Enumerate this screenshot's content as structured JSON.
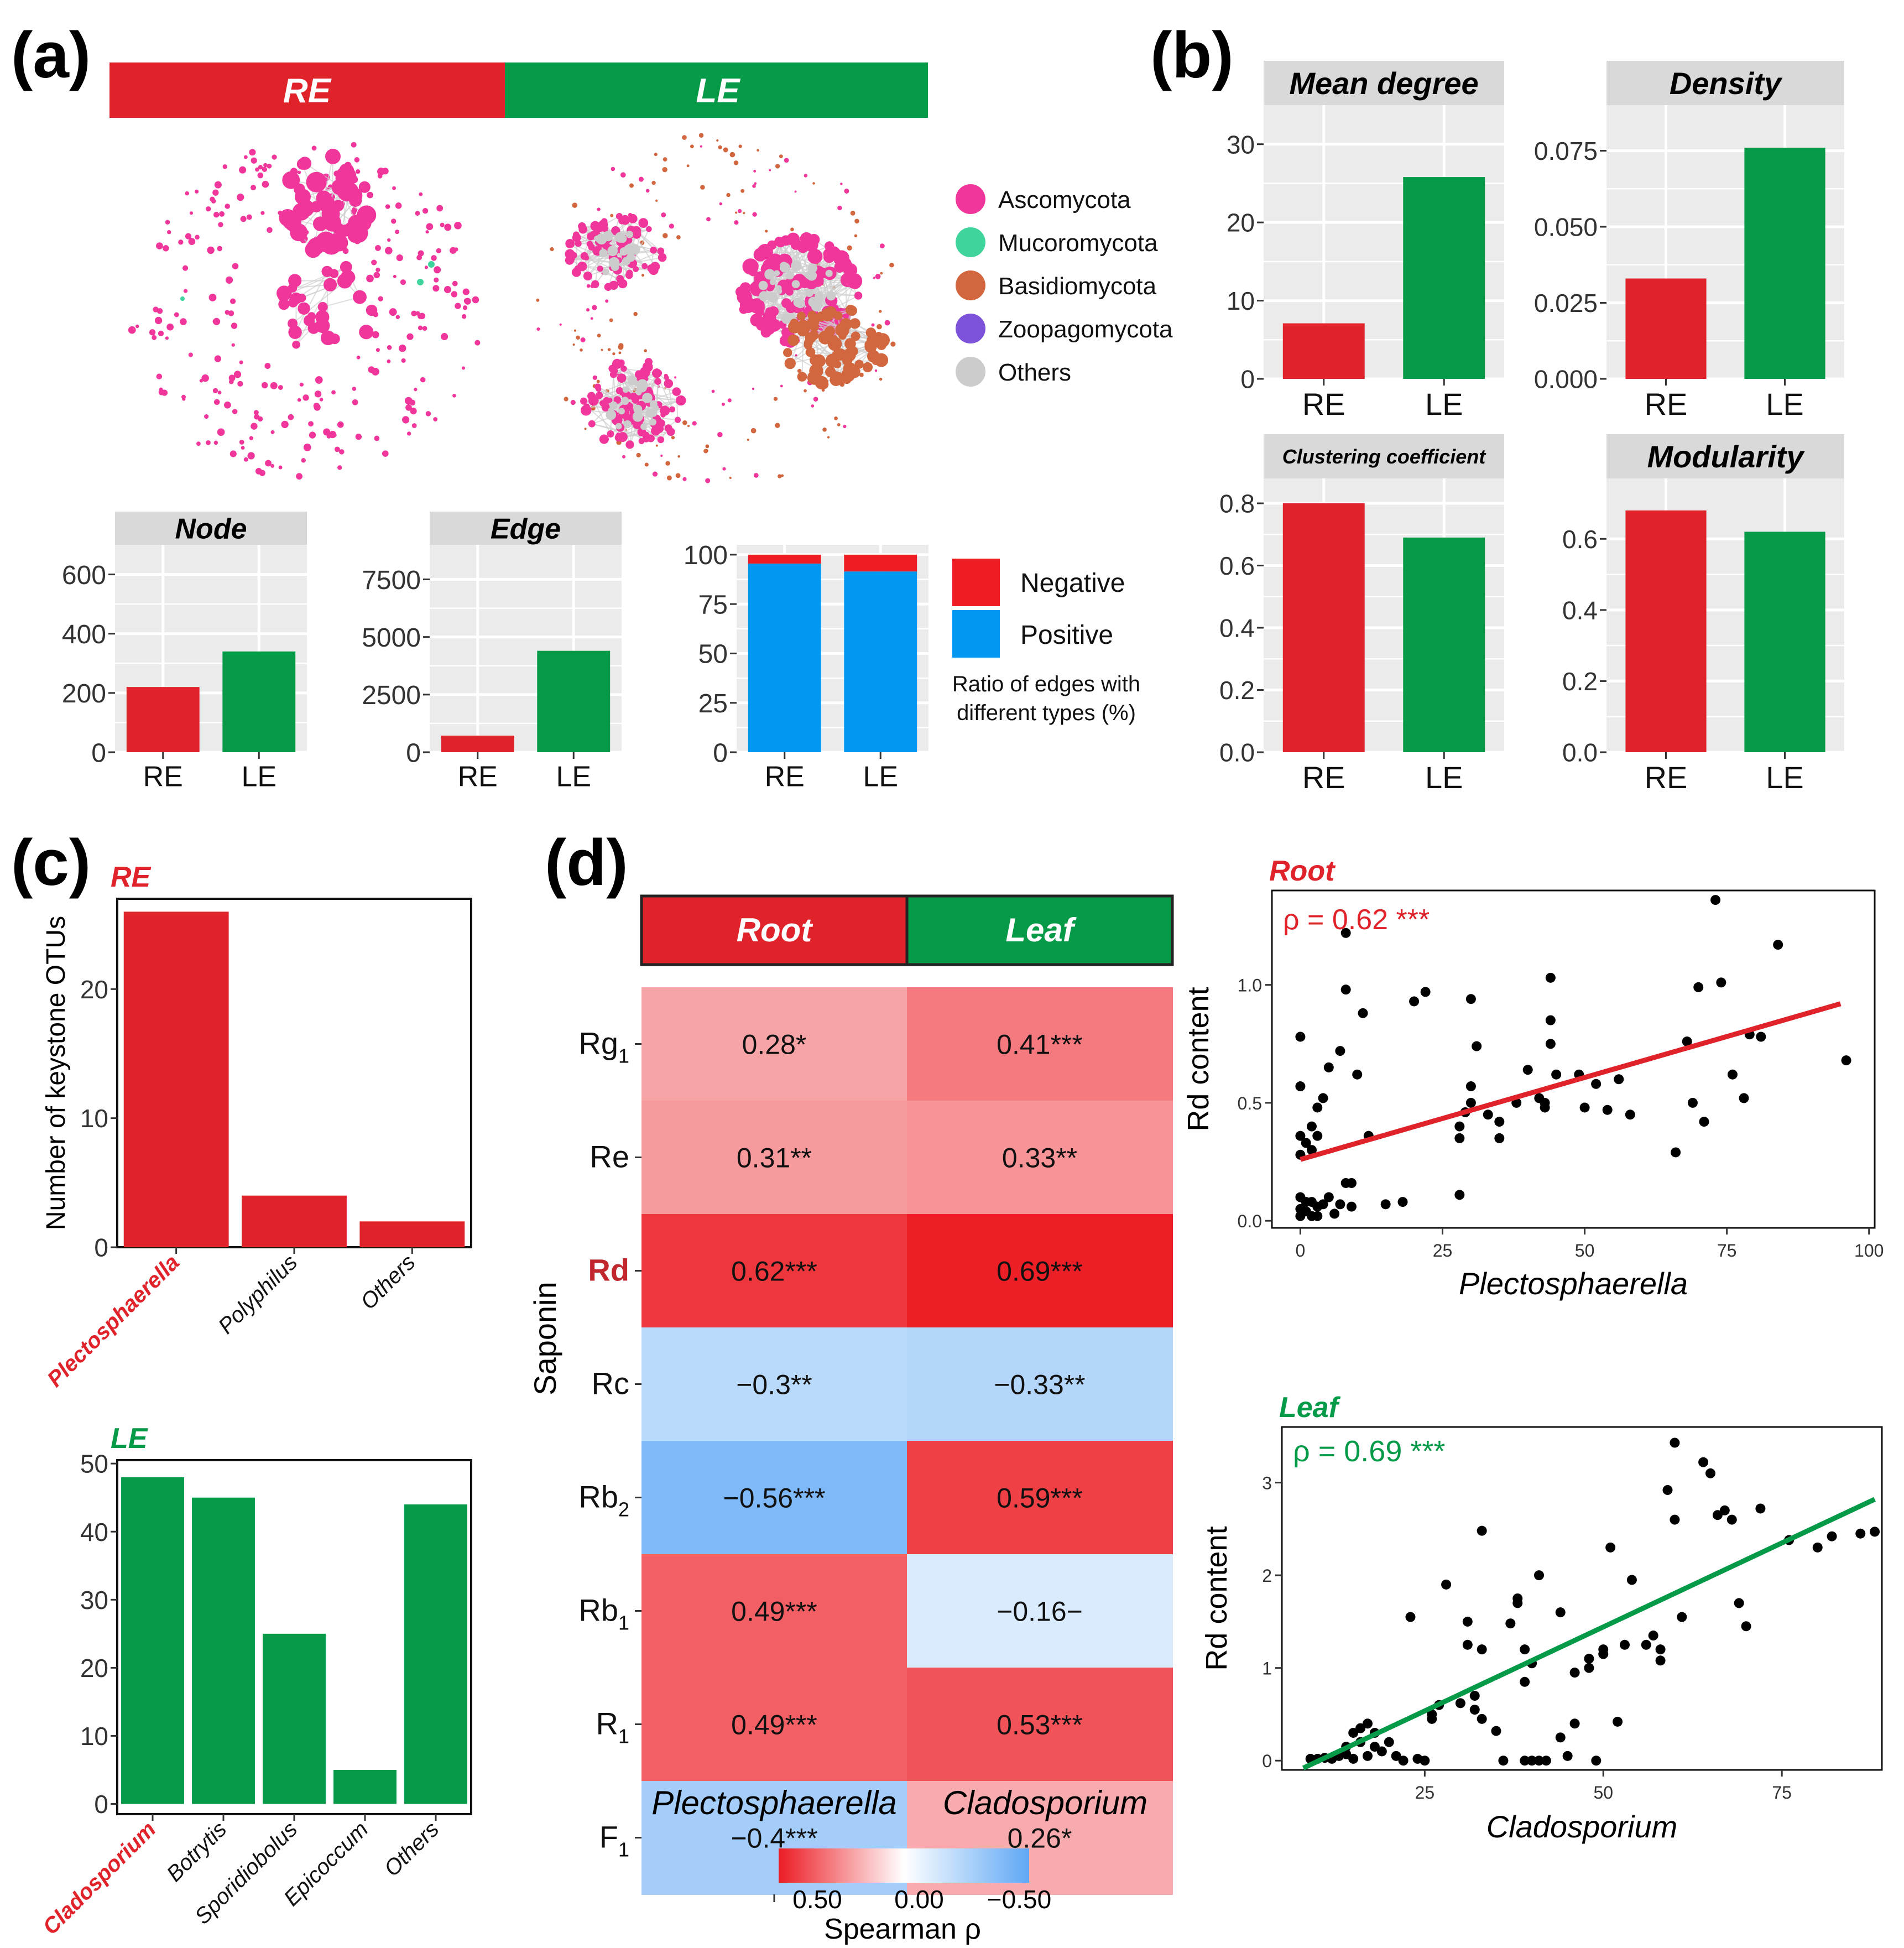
{
  "colors": {
    "red": "#e0232a",
    "green": "#049a48",
    "panel": "#ebebeb",
    "strip": "#d9d9d9",
    "pink": "#f0369b",
    "neg": "#ee1d23",
    "pos": "#0098f0",
    "axis": "#333333",
    "heat_hi": "#ec1c24",
    "heat_lo": "#5fa8f5"
  },
  "labels": {
    "a": "(a)",
    "b": "(b)",
    "c": "(c)",
    "d": "(d)"
  },
  "network": {
    "groups": [
      "RE",
      "LE"
    ],
    "legend": [
      {
        "name": "Ascomycota",
        "color": "#f0369b"
      },
      {
        "name": "Mucoromycota",
        "color": "#3fd49c"
      },
      {
        "name": "Basidiomycota",
        "color": "#d2663e"
      },
      {
        "name": "Zoopagomycota",
        "color": "#7b52d8"
      },
      {
        "name": "Others",
        "color": "#cccccc"
      }
    ]
  },
  "chart_data": [
    {
      "id": "node",
      "type": "bar",
      "title": "Node",
      "categories": [
        "RE",
        "LE"
      ],
      "values": [
        220,
        340
      ],
      "ylim": [
        0,
        700
      ],
      "yticks": [
        0,
        200,
        400,
        600
      ]
    },
    {
      "id": "edge",
      "type": "bar",
      "title": "Edge",
      "categories": [
        "RE",
        "LE"
      ],
      "values": [
        720,
        4400
      ],
      "ylim": [
        0,
        9000
      ],
      "yticks": [
        0,
        2500,
        5000,
        7500
      ]
    },
    {
      "id": "ratio",
      "type": "bar",
      "stacked": true,
      "title": "",
      "categories": [
        "RE",
        "LE"
      ],
      "series": [
        {
          "name": "Positive",
          "values": [
            95.5,
            91.5
          ]
        },
        {
          "name": "Negative",
          "values": [
            4.5,
            8.5
          ]
        }
      ],
      "ylim": [
        0,
        105
      ],
      "yticks": [
        0,
        25,
        50,
        75,
        100
      ],
      "legend": [
        "Negative",
        "Positive"
      ],
      "note": "Ratio of edges with different types (%)"
    },
    {
      "id": "meandegree",
      "type": "bar",
      "title": "Mean degree",
      "categories": [
        "RE",
        "LE"
      ],
      "values": [
        7.1,
        25.8
      ],
      "ylim": [
        0,
        35
      ],
      "yticks": [
        0,
        10,
        20,
        30
      ]
    },
    {
      "id": "density",
      "type": "bar",
      "title": "Density",
      "categories": [
        "RE",
        "LE"
      ],
      "values": [
        0.033,
        0.076
      ],
      "ylim": [
        0,
        0.09
      ],
      "yticks": [
        "0.000",
        "0.025",
        "0.050",
        "0.075"
      ]
    },
    {
      "id": "clustering",
      "type": "bar",
      "title": "Clustering coefficient",
      "categories": [
        "RE",
        "LE"
      ],
      "values": [
        0.8,
        0.69
      ],
      "ylim": [
        0,
        0.88
      ],
      "yticks": [
        "0.0",
        "0.2",
        "0.4",
        "0.6",
        "0.8"
      ]
    },
    {
      "id": "modularity",
      "type": "bar",
      "title": "Modularity",
      "categories": [
        "RE",
        "LE"
      ],
      "values": [
        0.68,
        0.62
      ],
      "ylim": [
        0,
        0.77
      ],
      "yticks": [
        "0.0",
        "0.2",
        "0.4",
        "0.6"
      ]
    },
    {
      "id": "keyre",
      "type": "bar",
      "title": "RE",
      "ylabel": "Number of keystone OTUs",
      "categories": [
        "Plectosphaerella",
        "Polyphilus",
        "Others"
      ],
      "values": [
        26,
        4,
        2
      ],
      "ylim": [
        0,
        27
      ],
      "yticks": [
        0,
        10,
        20
      ]
    },
    {
      "id": "keyle",
      "type": "bar",
      "title": "LE",
      "categories": [
        "Cladosporium",
        "Botrytis",
        "Sporidiobolus",
        "Epicoccum",
        "Others"
      ],
      "values": [
        48,
        45,
        25,
        5,
        44
      ],
      "ylim": [
        -1.5,
        50.5
      ],
      "yticks": [
        0,
        10,
        20,
        30,
        40,
        50
      ]
    },
    {
      "id": "heatmap",
      "type": "heatmap",
      "columns": [
        "Root",
        "Leaf"
      ],
      "xlabels": [
        "Plectosphaerella",
        "Cladosporium"
      ],
      "ylabel": "Saponin",
      "rows": [
        {
          "base": "Rg",
          "sub": "1",
          "values": [
            0.28,
            0.41
          ],
          "labels": [
            "0.28*",
            "0.41***"
          ]
        },
        {
          "base": "Re",
          "sub": "",
          "values": [
            0.31,
            0.33
          ],
          "labels": [
            "0.31**",
            "0.33**"
          ]
        },
        {
          "base": "Rd",
          "sub": "",
          "values": [
            0.62,
            0.69
          ],
          "labels": [
            "0.62***",
            "0.69***"
          ]
        },
        {
          "base": "Rc",
          "sub": "",
          "values": [
            -0.3,
            -0.33
          ],
          "labels": [
            "−0.3**",
            "−0.33**"
          ]
        },
        {
          "base": "Rb",
          "sub": "2",
          "values": [
            -0.56,
            0.59
          ],
          "labels": [
            "−0.56***",
            "0.59***"
          ]
        },
        {
          "base": "Rb",
          "sub": "1",
          "values": [
            0.49,
            -0.16
          ],
          "labels": [
            "0.49***",
            "−0.16−"
          ]
        },
        {
          "base": "R",
          "sub": "1",
          "values": [
            0.49,
            0.53
          ],
          "labels": [
            "0.49***",
            "0.53***"
          ]
        },
        {
          "base": "F",
          "sub": "1",
          "values": [
            -0.4,
            0.26
          ],
          "labels": [
            "−0.4***",
            "0.26*"
          ]
        }
      ],
      "colorbar": {
        "title": "Spearman ρ",
        "ticks": [
          "0.50",
          "0.00",
          "−0.50"
        ]
      }
    },
    {
      "id": "scatterroot",
      "type": "scatter",
      "title": "Root",
      "annotation": "ρ = 0.62 ***",
      "xlabel": "Plectosphaerella",
      "ylabel": "Rd content",
      "xlim": [
        -5,
        101
      ],
      "ylim": [
        -0.03,
        1.4
      ],
      "xticks": [
        0,
        25,
        50,
        75,
        100
      ],
      "yticks": [
        "0.0",
        "0.5",
        "1.0"
      ],
      "fit": [
        [
          0,
          0.26
        ],
        [
          95,
          0.92
        ]
      ],
      "points": [
        [
          0,
          0.78
        ],
        [
          0,
          0.57
        ],
        [
          0,
          0.36
        ],
        [
          0,
          0.28
        ],
        [
          0,
          0.1
        ],
        [
          0,
          0.05
        ],
        [
          0,
          0.02
        ],
        [
          1,
          0.33
        ],
        [
          1,
          0.08
        ],
        [
          1,
          0.04
        ],
        [
          2,
          0.4
        ],
        [
          2,
          0.3
        ],
        [
          2,
          0.08
        ],
        [
          2,
          0.02
        ],
        [
          3,
          0.48
        ],
        [
          3,
          0.36
        ],
        [
          3,
          0.06
        ],
        [
          3,
          0.02
        ],
        [
          4,
          0.52
        ],
        [
          4,
          0.07
        ],
        [
          5,
          0.65
        ],
        [
          5,
          0.1
        ],
        [
          6,
          0.03
        ],
        [
          7,
          0.72
        ],
        [
          7,
          0.07
        ],
        [
          8,
          0.98
        ],
        [
          8,
          0.16
        ],
        [
          8,
          1.22
        ],
        [
          9,
          0.16
        ],
        [
          9,
          0.06
        ],
        [
          10,
          0.62
        ],
        [
          11,
          0.88
        ],
        [
          12,
          0.36
        ],
        [
          15,
          0.07
        ],
        [
          18,
          0.08
        ],
        [
          20,
          0.93
        ],
        [
          22,
          0.97
        ],
        [
          28,
          0.11
        ],
        [
          28,
          0.4
        ],
        [
          28,
          0.35
        ],
        [
          29,
          0.46
        ],
        [
          30,
          0.94
        ],
        [
          30,
          0.57
        ],
        [
          30,
          0.5
        ],
        [
          31,
          0.74
        ],
        [
          33,
          0.45
        ],
        [
          35,
          0.42
        ],
        [
          35,
          0.35
        ],
        [
          38,
          0.5
        ],
        [
          40,
          0.64
        ],
        [
          42,
          0.52
        ],
        [
          43,
          0.5
        ],
        [
          43,
          0.48
        ],
        [
          44,
          1.03
        ],
        [
          44,
          0.85
        ],
        [
          44,
          0.75
        ],
        [
          45,
          0.62
        ],
        [
          49,
          0.62
        ],
        [
          50,
          0.48
        ],
        [
          52,
          0.58
        ],
        [
          54,
          0.47
        ],
        [
          56,
          0.6
        ],
        [
          58,
          0.45
        ],
        [
          66,
          0.29
        ],
        [
          68,
          0.76
        ],
        [
          69,
          0.5
        ],
        [
          70,
          0.99
        ],
        [
          71,
          0.42
        ],
        [
          73,
          1.36
        ],
        [
          74,
          1.01
        ],
        [
          76,
          0.62
        ],
        [
          78,
          0.52
        ],
        [
          79,
          0.79
        ],
        [
          81,
          0.78
        ],
        [
          84,
          1.17
        ],
        [
          96,
          0.68
        ]
      ]
    },
    {
      "id": "scatterleaf",
      "type": "scatter",
      "title": "Leaf",
      "annotation": "ρ = 0.69 ***",
      "xlabel": "Cladosporium",
      "ylabel": "Rd content",
      "xlim": [
        5,
        89
      ],
      "ylim": [
        -0.1,
        3.6
      ],
      "xticks": [
        25,
        50,
        75
      ],
      "yticks": [
        0,
        1,
        2,
        3
      ],
      "fit": [
        [
          8,
          -0.08
        ],
        [
          88,
          2.82
        ]
      ],
      "points": [
        [
          9,
          0.02
        ],
        [
          10,
          0.02
        ],
        [
          11,
          0.03
        ],
        [
          12,
          0.02
        ],
        [
          13,
          0.05
        ],
        [
          14,
          0.07
        ],
        [
          14,
          0.15
        ],
        [
          15,
          0.3
        ],
        [
          15,
          0.02
        ],
        [
          16,
          0.2
        ],
        [
          16,
          0.35
        ],
        [
          17,
          0.4
        ],
        [
          17,
          0.05
        ],
        [
          18,
          0.15
        ],
        [
          18,
          0.3
        ],
        [
          19,
          0.1
        ],
        [
          20,
          0.2
        ],
        [
          21,
          0.05
        ],
        [
          22,
          0.0
        ],
        [
          23,
          1.55
        ],
        [
          24,
          0.02
        ],
        [
          25,
          0.0
        ],
        [
          26,
          0.5
        ],
        [
          26,
          0.45
        ],
        [
          27,
          0.6
        ],
        [
          28,
          1.9
        ],
        [
          30,
          0.62
        ],
        [
          31,
          1.5
        ],
        [
          31,
          1.25
        ],
        [
          32,
          0.7
        ],
        [
          32,
          0.55
        ],
        [
          33,
          1.2
        ],
        [
          33,
          0.45
        ],
        [
          33,
          2.48
        ],
        [
          35,
          0.32
        ],
        [
          36,
          0.0
        ],
        [
          37,
          1.48
        ],
        [
          38,
          1.7
        ],
        [
          38,
          1.75
        ],
        [
          39,
          0.0
        ],
        [
          39,
          1.2
        ],
        [
          39,
          0.85
        ],
        [
          40,
          1.05
        ],
        [
          40,
          0.0
        ],
        [
          41,
          0.0
        ],
        [
          41,
          2.0
        ],
        [
          42,
          0.0
        ],
        [
          44,
          1.6
        ],
        [
          44,
          0.25
        ],
        [
          45,
          0.05
        ],
        [
          46,
          0.95
        ],
        [
          46,
          0.4
        ],
        [
          48,
          1.1
        ],
        [
          48,
          1.0
        ],
        [
          49,
          0.0
        ],
        [
          50,
          1.2
        ],
        [
          50,
          1.15
        ],
        [
          51,
          2.3
        ],
        [
          52,
          0.42
        ],
        [
          53,
          1.25
        ],
        [
          54,
          1.95
        ],
        [
          56,
          1.25
        ],
        [
          57,
          1.35
        ],
        [
          58,
          1.2
        ],
        [
          58,
          1.08
        ],
        [
          59,
          2.92
        ],
        [
          60,
          2.6
        ],
        [
          60,
          3.43
        ],
        [
          61,
          1.55
        ],
        [
          64,
          3.22
        ],
        [
          65,
          3.1
        ],
        [
          66,
          2.65
        ],
        [
          67,
          2.7
        ],
        [
          68,
          2.6
        ],
        [
          69,
          1.7
        ],
        [
          70,
          1.45
        ],
        [
          72,
          2.72
        ],
        [
          76,
          2.38
        ],
        [
          80,
          2.3
        ],
        [
          82,
          2.42
        ],
        [
          86,
          2.45
        ],
        [
          88,
          2.47
        ]
      ]
    }
  ]
}
